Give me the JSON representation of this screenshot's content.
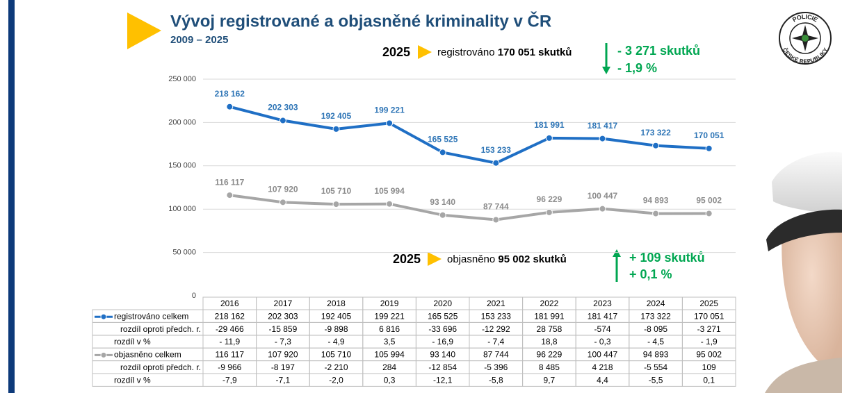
{
  "header": {
    "title": "Vývoj registrované a objasněné kriminality v ČR",
    "subtitle": "2009 – 2025"
  },
  "logo": {
    "top": "POLICIE",
    "bottom": "ČESKÉ REPUBLIKY"
  },
  "annotations": [
    {
      "year": "2025",
      "label": "registrováno",
      "value": "170 051 skutků",
      "change": "- 3 271 skutků",
      "change_pct": "- 1,9 %"
    },
    {
      "year": "2025",
      "label": "objasněno",
      "value": "95 002 skutků",
      "change": "+ 109 skutků",
      "change_pct": "+ 0,1 %"
    }
  ],
  "chart_data": {
    "type": "line",
    "categories": [
      "2016",
      "2017",
      "2018",
      "2019",
      "2020",
      "2021",
      "2022",
      "2023",
      "2024",
      "2025"
    ],
    "ylim": [
      0,
      250000
    ],
    "yticks": [
      0,
      {
        "value": 50000,
        "label": "50 000"
      },
      {
        "value": 100000,
        "label": "100 000"
      },
      {
        "value": 150000,
        "label": "150 000"
      },
      {
        "value": 200000,
        "label": "200 000"
      },
      {
        "value": 250000,
        "label": "250 000"
      }
    ],
    "grid": true,
    "series": [
      {
        "name": "registrováno celkem",
        "color": "#1f6fc5",
        "values": [
          218162,
          202303,
          192405,
          199221,
          165525,
          153233,
          181991,
          181417,
          173322,
          170051
        ],
        "value_labels": [
          "218 162",
          "202 303",
          "192 405",
          "199 221",
          "165 525",
          "153 233",
          "181 991",
          "181 417",
          "173 322",
          "170 051"
        ]
      },
      {
        "name": "objasněno celkem",
        "color": "#a6a6a6",
        "values": [
          116117,
          107920,
          105710,
          105994,
          93140,
          87744,
          96229,
          100447,
          94893,
          95002
        ],
        "value_labels": [
          "116 117",
          "107 920",
          "105 710",
          "105 994",
          "93 140",
          "87 744",
          "96 229",
          "100 447",
          "94 893",
          "95 002"
        ]
      }
    ]
  },
  "table": {
    "rows": [
      {
        "label": "rozdíl oproti předch. r.",
        "cells": [
          "-29 466",
          "-15 859",
          "-9 898",
          "6 816",
          "-33 696",
          "-12 292",
          "28 758",
          "-574",
          "-8 095",
          "-3 271"
        ]
      },
      {
        "label": "rozdíl v %",
        "cells": [
          "- 11,9",
          "- 7,3",
          "- 4,9",
          "3,5",
          "- 16,9",
          "- 7,4",
          "18,8",
          "- 0,3",
          "- 4,5",
          "- 1,9"
        ]
      },
      {
        "label": "rozdíl oproti předch. r.",
        "cells": [
          "-9 966",
          "-8 197",
          "-2 210",
          "284",
          "-12 854",
          "-5 396",
          "8 485",
          "4 218",
          "-5 554",
          "109"
        ]
      },
      {
        "label": "rozdíl v %",
        "cells": [
          "-7,9",
          "-7,1",
          "-2,0",
          "0,3",
          "-12,1",
          "-5,8",
          "9,7",
          "4,4",
          "-5,5",
          "0,1"
        ]
      }
    ]
  }
}
